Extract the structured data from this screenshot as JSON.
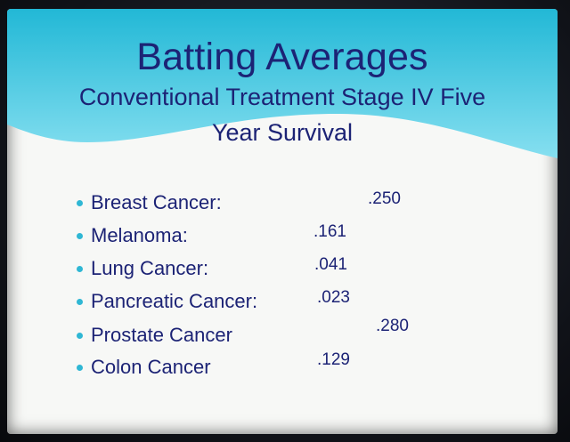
{
  "slide": {
    "title": "Batting Averages",
    "subtitle_line1": "Conventional Treatment Stage IV Five",
    "subtitle_line2": "Year Survival",
    "colors": {
      "title_text": "#1c2375",
      "banner_top": "#22b8d6",
      "banner_bottom": "#86dff0",
      "bullet": "#2fb7d4",
      "background": "#f7f8f6"
    },
    "items": [
      {
        "label": "Breast Cancer:",
        "value": ".250"
      },
      {
        "label": "Melanoma:",
        "value": ".161"
      },
      {
        "label": "Lung Cancer:",
        "value": ".041"
      },
      {
        "label": "Pancreatic Cancer:",
        "value": ".023"
      },
      {
        "label": "Prostate Cancer",
        "value": ".280"
      },
      {
        "label": "Colon Cancer",
        "value": ".129"
      }
    ]
  }
}
